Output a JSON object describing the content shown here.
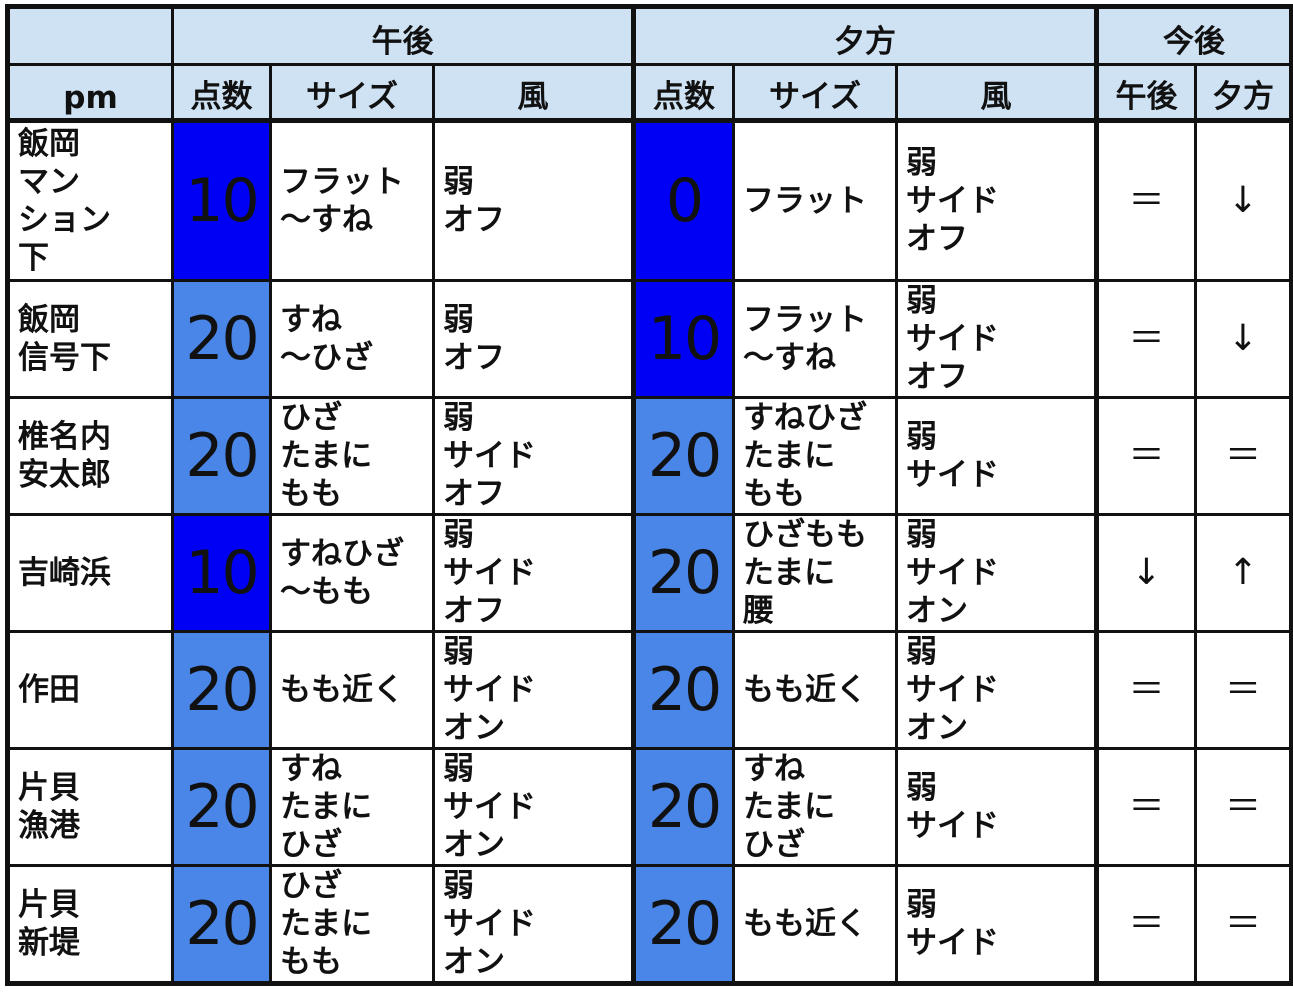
{
  "colors": {
    "header": "#cfe2f3",
    "score10": "#0000f5",
    "score20": "#4a86e8",
    "score0": "#0000f5"
  },
  "header": {
    "corner_label": "pm",
    "groups": [
      "午後",
      "夕方",
      "今後"
    ],
    "sub": [
      "点数",
      "サイズ",
      "風",
      "点数",
      "サイズ",
      "風",
      "午後",
      "夕方"
    ]
  },
  "rows": [
    {
      "place": "飯岡\nマン\nション\n下",
      "pm_score": "10",
      "pm_size": "フラット\n～すね",
      "pm_wind": "弱\nオフ",
      "ev_score": "0",
      "ev_size": "フラット",
      "ev_wind": "弱\nサイド\nオフ",
      "trend_pm": "＝",
      "trend_ev": "↓"
    },
    {
      "place": "飯岡\n信号下",
      "pm_score": "20",
      "pm_size": "すね\n～ひざ",
      "pm_wind": "弱\nオフ",
      "ev_score": "10",
      "ev_size": "フラット\n～すね",
      "ev_wind": "弱\nサイド\nオフ",
      "trend_pm": "＝",
      "trend_ev": "↓"
    },
    {
      "place": "椎名内\n安太郎",
      "pm_score": "20",
      "pm_size": "ひざ\nたまに\nもも",
      "pm_wind": "弱\nサイド\nオフ",
      "ev_score": "20",
      "ev_size": "すねひざ\nたまに\nもも",
      "ev_wind": "弱\nサイド",
      "trend_pm": "＝",
      "trend_ev": "＝"
    },
    {
      "place": "吉崎浜",
      "pm_score": "10",
      "pm_size": "すねひざ\n～もも",
      "pm_wind": "弱\nサイド\nオフ",
      "ev_score": "20",
      "ev_size": "ひざもも\nたまに\n腰",
      "ev_wind": "弱\nサイド\nオン",
      "trend_pm": "↓",
      "trend_ev": "↑"
    },
    {
      "place": "作田",
      "pm_score": "20",
      "pm_size": "もも近く",
      "pm_wind": "弱\nサイド\nオン",
      "ev_score": "20",
      "ev_size": "もも近く",
      "ev_wind": "弱\nサイド\nオン",
      "trend_pm": "＝",
      "trend_ev": "＝"
    },
    {
      "place": "片貝\n漁港",
      "pm_score": "20",
      "pm_size": "すね\nたまに\nひざ",
      "pm_wind": "弱\nサイド\nオン",
      "ev_score": "20",
      "ev_size": "すね\nたまに\nひざ",
      "ev_wind": "弱\nサイド",
      "trend_pm": "＝",
      "trend_ev": "＝"
    },
    {
      "place": "片貝\n新堤",
      "pm_score": "20",
      "pm_size": "ひざ\nたまに\nもも",
      "pm_wind": "弱\nサイド\nオン",
      "ev_score": "20",
      "ev_size": "もも近く",
      "ev_wind": "弱\nサイド",
      "trend_pm": "＝",
      "trend_ev": "＝"
    }
  ]
}
